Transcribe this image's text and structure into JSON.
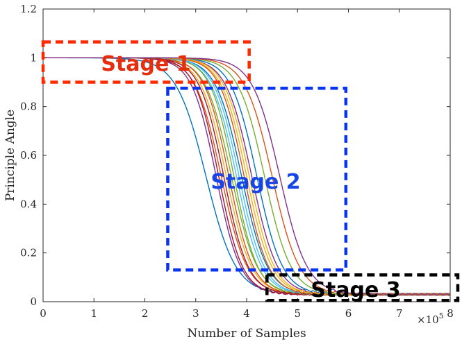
{
  "chart_data": {
    "type": "line",
    "title": "",
    "xlabel": "Number of Samples",
    "ylabel": "Principle Angle",
    "x_multiplier_label": "×10",
    "x_multiplier_exponent": "5",
    "xlim": [
      0,
      8
    ],
    "ylim": [
      0,
      1.2
    ],
    "xticks": [
      0,
      1,
      2,
      3,
      4,
      5,
      6,
      7,
      8
    ],
    "xtick_labels": [
      "0",
      "1",
      "2",
      "3",
      "4",
      "5",
      "6",
      "7",
      "8"
    ],
    "yticks": [
      0,
      0.2,
      0.4,
      0.6,
      0.8,
      1.0,
      1.2
    ],
    "ytick_labels": [
      "0",
      "0.2",
      "0.4",
      "0.6",
      "0.8",
      "1",
      "1.2"
    ],
    "grid": false,
    "curve_shape": "sigmoid descending from ~1 to ~0.03",
    "series": [
      {
        "midpoint": 3.2,
        "steepness": 1.55,
        "color": "#0072BD"
      },
      {
        "midpoint": 3.5,
        "steepness": 1.8,
        "color": "#D95319"
      },
      {
        "midpoint": 3.6,
        "steepness": 1.85,
        "color": "#EDB120"
      },
      {
        "midpoint": 3.4,
        "steepness": 1.9,
        "color": "#7E2F8E"
      },
      {
        "midpoint": 3.7,
        "steepness": 1.8,
        "color": "#77AC30"
      },
      {
        "midpoint": 3.8,
        "steepness": 1.85,
        "color": "#4DBEEE"
      },
      {
        "midpoint": 3.45,
        "steepness": 1.95,
        "color": "#A2142F"
      },
      {
        "midpoint": 3.9,
        "steepness": 1.8,
        "color": "#0072BD"
      },
      {
        "midpoint": 3.65,
        "steepness": 1.9,
        "color": "#D95319"
      },
      {
        "midpoint": 4.0,
        "steepness": 1.85,
        "color": "#EDB120"
      },
      {
        "midpoint": 4.1,
        "steepness": 1.8,
        "color": "#7E2F8E"
      },
      {
        "midpoint": 3.75,
        "steepness": 1.95,
        "color": "#77AC30"
      },
      {
        "midpoint": 3.85,
        "steepness": 1.85,
        "color": "#4DBEEE"
      },
      {
        "midpoint": 3.55,
        "steepness": 1.9,
        "color": "#A2142F"
      },
      {
        "midpoint": 4.2,
        "steepness": 1.8,
        "color": "#0072BD"
      },
      {
        "midpoint": 3.95,
        "steepness": 1.9,
        "color": "#D95319"
      },
      {
        "midpoint": 4.05,
        "steepness": 1.85,
        "color": "#EDB120"
      },
      {
        "midpoint": 4.35,
        "steepness": 1.75,
        "color": "#77AC30"
      },
      {
        "midpoint": 4.5,
        "steepness": 1.7,
        "color": "#D95319"
      },
      {
        "midpoint": 4.65,
        "steepness": 1.7,
        "color": "#7E2F8E"
      }
    ],
    "annotations": [
      {
        "label": "Stage 1",
        "color": "#FF2A00",
        "label_color": "#E62E0E",
        "x_range": [
          0,
          4.05
        ],
        "y_range": [
          0.9,
          1.065
        ]
      },
      {
        "label": "Stage 2",
        "color": "#0A35F0",
        "label_color": "#1846E6",
        "x_range": [
          2.45,
          5.95
        ],
        "y_range": [
          0.13,
          0.875
        ]
      },
      {
        "label": "Stage 3",
        "color": "#000000",
        "label_color": "#000000",
        "x_range": [
          4.4,
          8.15
        ],
        "y_range": [
          0.005,
          0.11
        ]
      }
    ]
  }
}
